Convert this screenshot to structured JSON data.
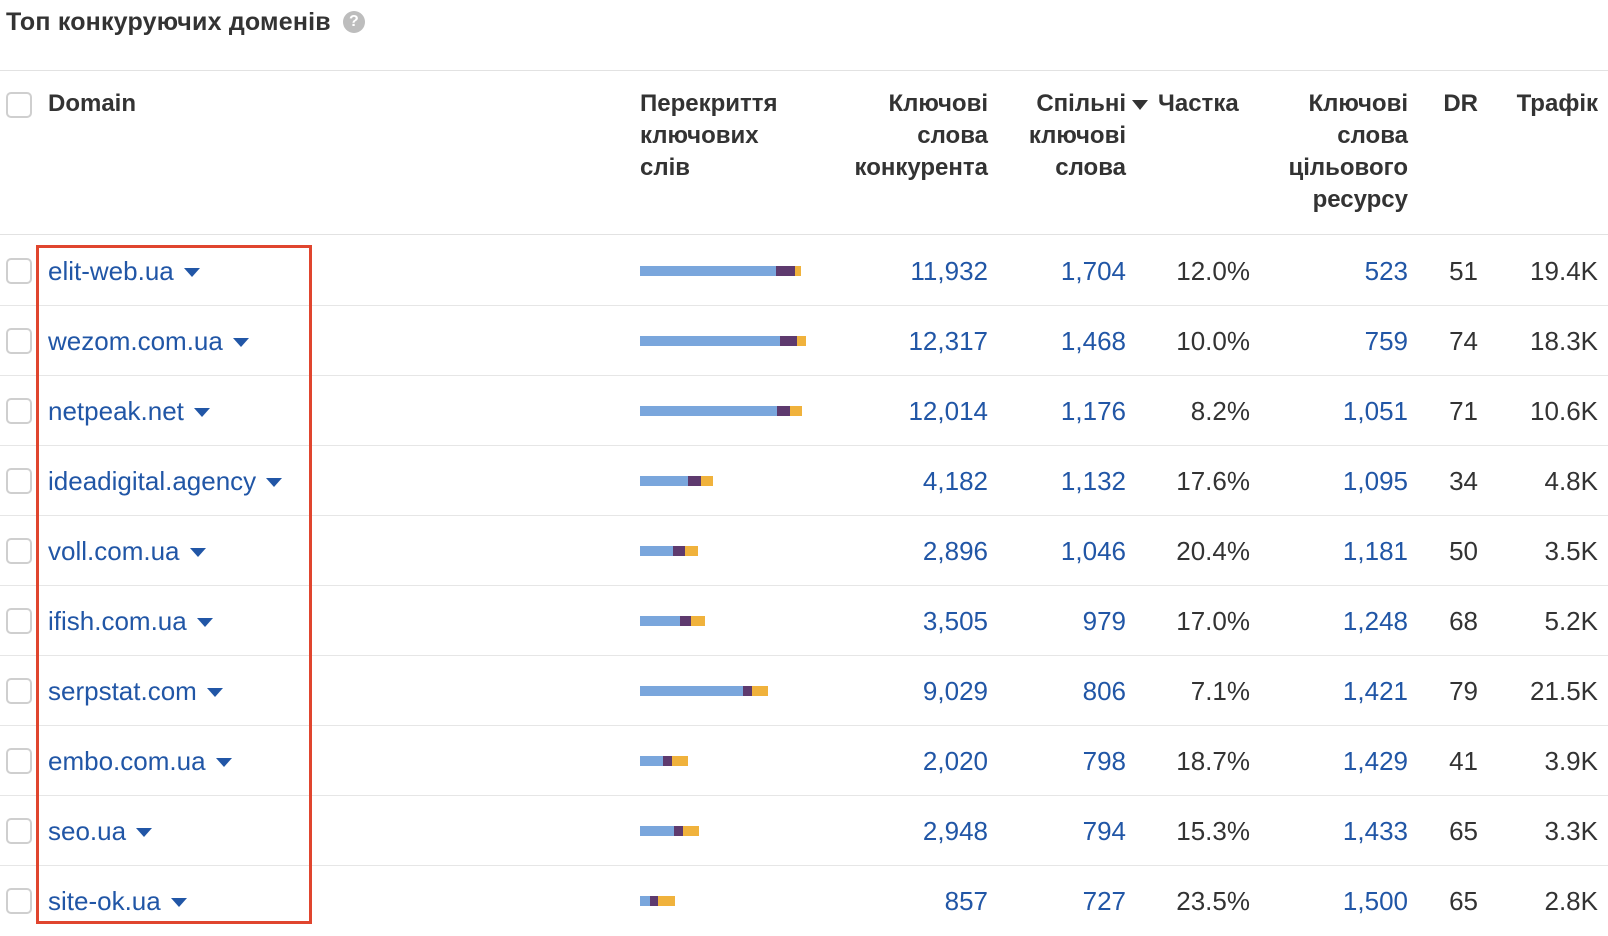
{
  "title": "Топ конкуруючих доменів",
  "help_icon": "?",
  "headers": {
    "domain": "Domain",
    "overlap": [
      "Перекриття",
      "ключових",
      "слів"
    ],
    "competitor_keywords": [
      "Ключові",
      "слова",
      "конкурента"
    ],
    "common_keywords": [
      "Спільні",
      "ключові",
      "слова"
    ],
    "share": "Частка",
    "target_keywords": [
      "Ключові",
      "слова",
      "цільового",
      "ресурсу"
    ],
    "dr": "DR",
    "traffic": "Трафік"
  },
  "colors": {
    "link": "#2156a6",
    "bar_blue": "#7aa6dc",
    "bar_purple": "#5e3a6e",
    "bar_yellow": "#f0b23c",
    "highlight": "#e0452e"
  },
  "rows": [
    {
      "domain": "elit-web.ua",
      "competitor_keywords": "11,932",
      "common_keywords": "1,704",
      "share": "12.0%",
      "target_keywords": "523",
      "dr": "51",
      "traffic": "19.4K",
      "bar": {
        "blue": 11932,
        "purple": 1704,
        "yellow": 523
      }
    },
    {
      "domain": "wezom.com.ua",
      "competitor_keywords": "12,317",
      "common_keywords": "1,468",
      "share": "10.0%",
      "target_keywords": "759",
      "dr": "74",
      "traffic": "18.3K",
      "bar": {
        "blue": 12317,
        "purple": 1468,
        "yellow": 759
      }
    },
    {
      "domain": "netpeak.net",
      "competitor_keywords": "12,014",
      "common_keywords": "1,176",
      "share": "8.2%",
      "target_keywords": "1,051",
      "dr": "71",
      "traffic": "10.6K",
      "bar": {
        "blue": 12014,
        "purple": 1176,
        "yellow": 1051
      }
    },
    {
      "domain": "ideadigital.agency",
      "competitor_keywords": "4,182",
      "common_keywords": "1,132",
      "share": "17.6%",
      "target_keywords": "1,095",
      "dr": "34",
      "traffic": "4.8K",
      "bar": {
        "blue": 4182,
        "purple": 1132,
        "yellow": 1095
      }
    },
    {
      "domain": "voll.com.ua",
      "competitor_keywords": "2,896",
      "common_keywords": "1,046",
      "share": "20.4%",
      "target_keywords": "1,181",
      "dr": "50",
      "traffic": "3.5K",
      "bar": {
        "blue": 2896,
        "purple": 1046,
        "yellow": 1181
      }
    },
    {
      "domain": "ifish.com.ua",
      "competitor_keywords": "3,505",
      "common_keywords": "979",
      "share": "17.0%",
      "target_keywords": "1,248",
      "dr": "68",
      "traffic": "5.2K",
      "bar": {
        "blue": 3505,
        "purple": 979,
        "yellow": 1248
      }
    },
    {
      "domain": "serpstat.com",
      "competitor_keywords": "9,029",
      "common_keywords": "806",
      "share": "7.1%",
      "target_keywords": "1,421",
      "dr": "79",
      "traffic": "21.5K",
      "bar": {
        "blue": 9029,
        "purple": 806,
        "yellow": 1421
      }
    },
    {
      "domain": "embo.com.ua",
      "competitor_keywords": "2,020",
      "common_keywords": "798",
      "share": "18.7%",
      "target_keywords": "1,429",
      "dr": "41",
      "traffic": "3.9K",
      "bar": {
        "blue": 2020,
        "purple": 798,
        "yellow": 1429
      }
    },
    {
      "domain": "seo.ua",
      "competitor_keywords": "2,948",
      "common_keywords": "794",
      "share": "15.3%",
      "target_keywords": "1,433",
      "dr": "65",
      "traffic": "3.3K",
      "bar": {
        "blue": 2948,
        "purple": 794,
        "yellow": 1433
      }
    },
    {
      "domain": "site-ok.ua",
      "competitor_keywords": "857",
      "common_keywords": "727",
      "share": "23.5%",
      "target_keywords": "1,500",
      "dr": "65",
      "traffic": "2.8K",
      "bar": {
        "blue": 857,
        "purple": 727,
        "yellow": 1500
      }
    }
  ]
}
